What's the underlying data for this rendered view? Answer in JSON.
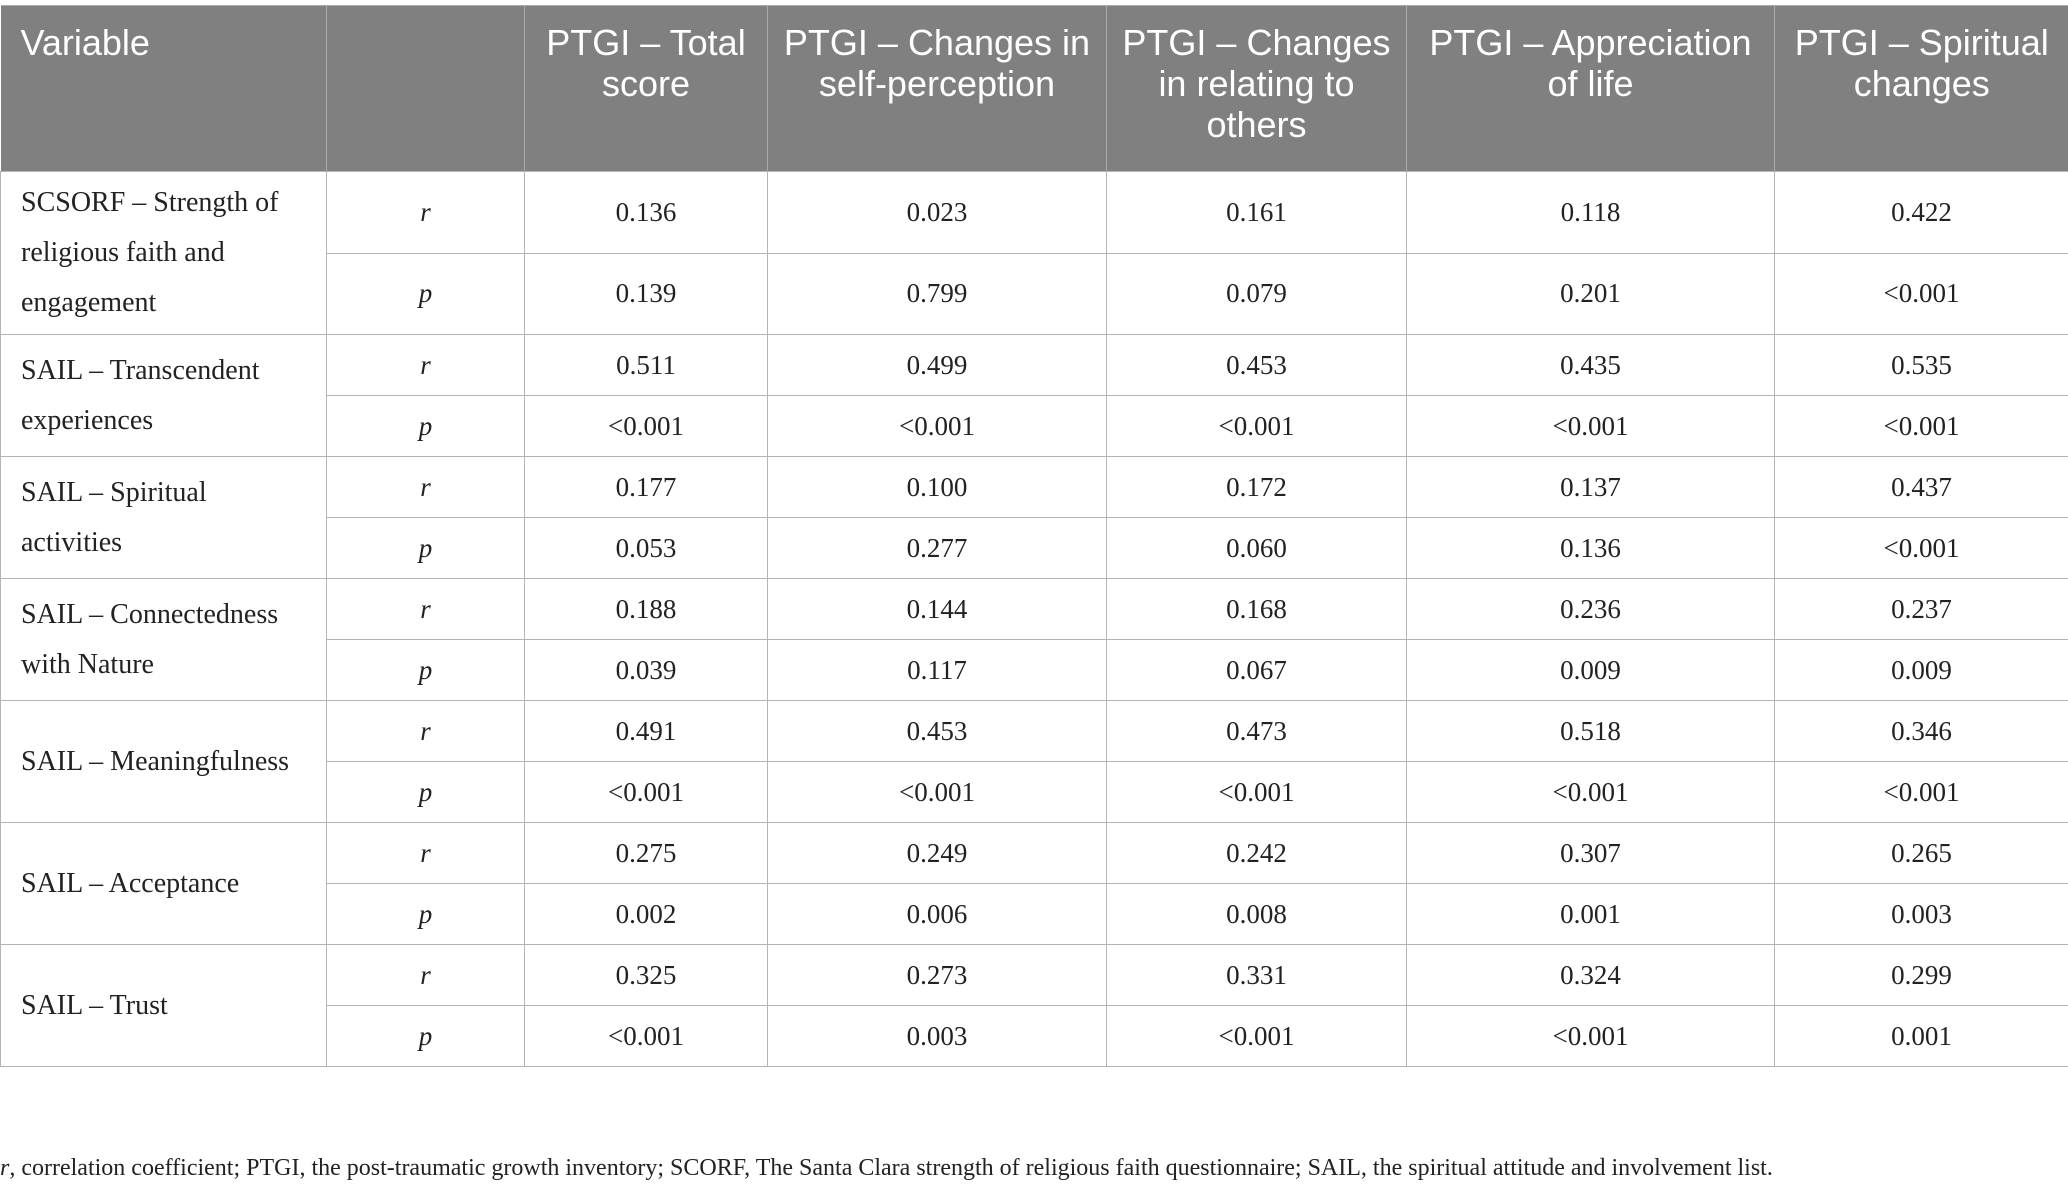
{
  "header": {
    "variable": "Variable",
    "stat": "",
    "total": "PTGI – Total score",
    "self": "PTGI – Changes in self-perception",
    "others": "PTGI – Changes in relating to others",
    "life": "PTGI – Appreciation of life",
    "spiritual": "PTGI – Spiritual changes"
  },
  "rows": [
    {
      "variable": "SCSORF – Strength of religious faith and engagement",
      "r": {
        "label": "r",
        "total": "0.136",
        "self": "0.023",
        "others": "0.161",
        "life": "0.118",
        "spiritual": "0.422"
      },
      "p": {
        "label": "p",
        "total": "0.139",
        "self": "0.799",
        "others": "0.079",
        "life": "0.201",
        "spiritual": "<0.001"
      }
    },
    {
      "variable": "SAIL – Transcendent experiences",
      "r": {
        "label": "r",
        "total": "0.511",
        "self": "0.499",
        "others": "0.453",
        "life": "0.435",
        "spiritual": "0.535"
      },
      "p": {
        "label": "p",
        "total": "<0.001",
        "self": "<0.001",
        "others": "<0.001",
        "life": "<0.001",
        "spiritual": "<0.001"
      }
    },
    {
      "variable": "SAIL – Spiritual activities",
      "r": {
        "label": "r",
        "total": "0.177",
        "self": "0.100",
        "others": "0.172",
        "life": "0.137",
        "spiritual": "0.437"
      },
      "p": {
        "label": "p",
        "total": "0.053",
        "self": "0.277",
        "others": "0.060",
        "life": "0.136",
        "spiritual": "<0.001"
      }
    },
    {
      "variable": "SAIL – Connectedness with Nature",
      "r": {
        "label": "r",
        "total": "0.188",
        "self": "0.144",
        "others": "0.168",
        "life": "0.236",
        "spiritual": "0.237"
      },
      "p": {
        "label": "p",
        "total": "0.039",
        "self": "0.117",
        "others": "0.067",
        "life": "0.009",
        "spiritual": "0.009"
      }
    },
    {
      "variable": "SAIL – Meaningfulness",
      "r": {
        "label": "r",
        "total": "0.491",
        "self": "0.453",
        "others": "0.473",
        "life": "0.518",
        "spiritual": "0.346"
      },
      "p": {
        "label": "p",
        "total": "<0.001",
        "self": "<0.001",
        "others": "<0.001",
        "life": "<0.001",
        "spiritual": "<0.001"
      }
    },
    {
      "variable": "SAIL – Acceptance",
      "r": {
        "label": "r",
        "total": "0.275",
        "self": "0.249",
        "others": "0.242",
        "life": "0.307",
        "spiritual": "0.265"
      },
      "p": {
        "label": "p",
        "total": "0.002",
        "self": "0.006",
        "others": "0.008",
        "life": "0.001",
        "spiritual": "0.003"
      }
    },
    {
      "variable": "SAIL – Trust",
      "r": {
        "label": "r",
        "total": "0.325",
        "self": "0.273",
        "others": "0.331",
        "life": "0.324",
        "spiritual": "0.299"
      },
      "p": {
        "label": "p",
        "total": "<0.001",
        "self": "0.003",
        "others": "<0.001",
        "life": "<0.001",
        "spiritual": "0.001"
      }
    }
  ],
  "footnote": {
    "symbol": "r",
    "text": ", correlation coefficient; PTGI, the post-traumatic growth inventory; SCORF, The Santa Clara strength of religious faith questionnaire; SAIL, the spiritual attitude and involvement list."
  }
}
